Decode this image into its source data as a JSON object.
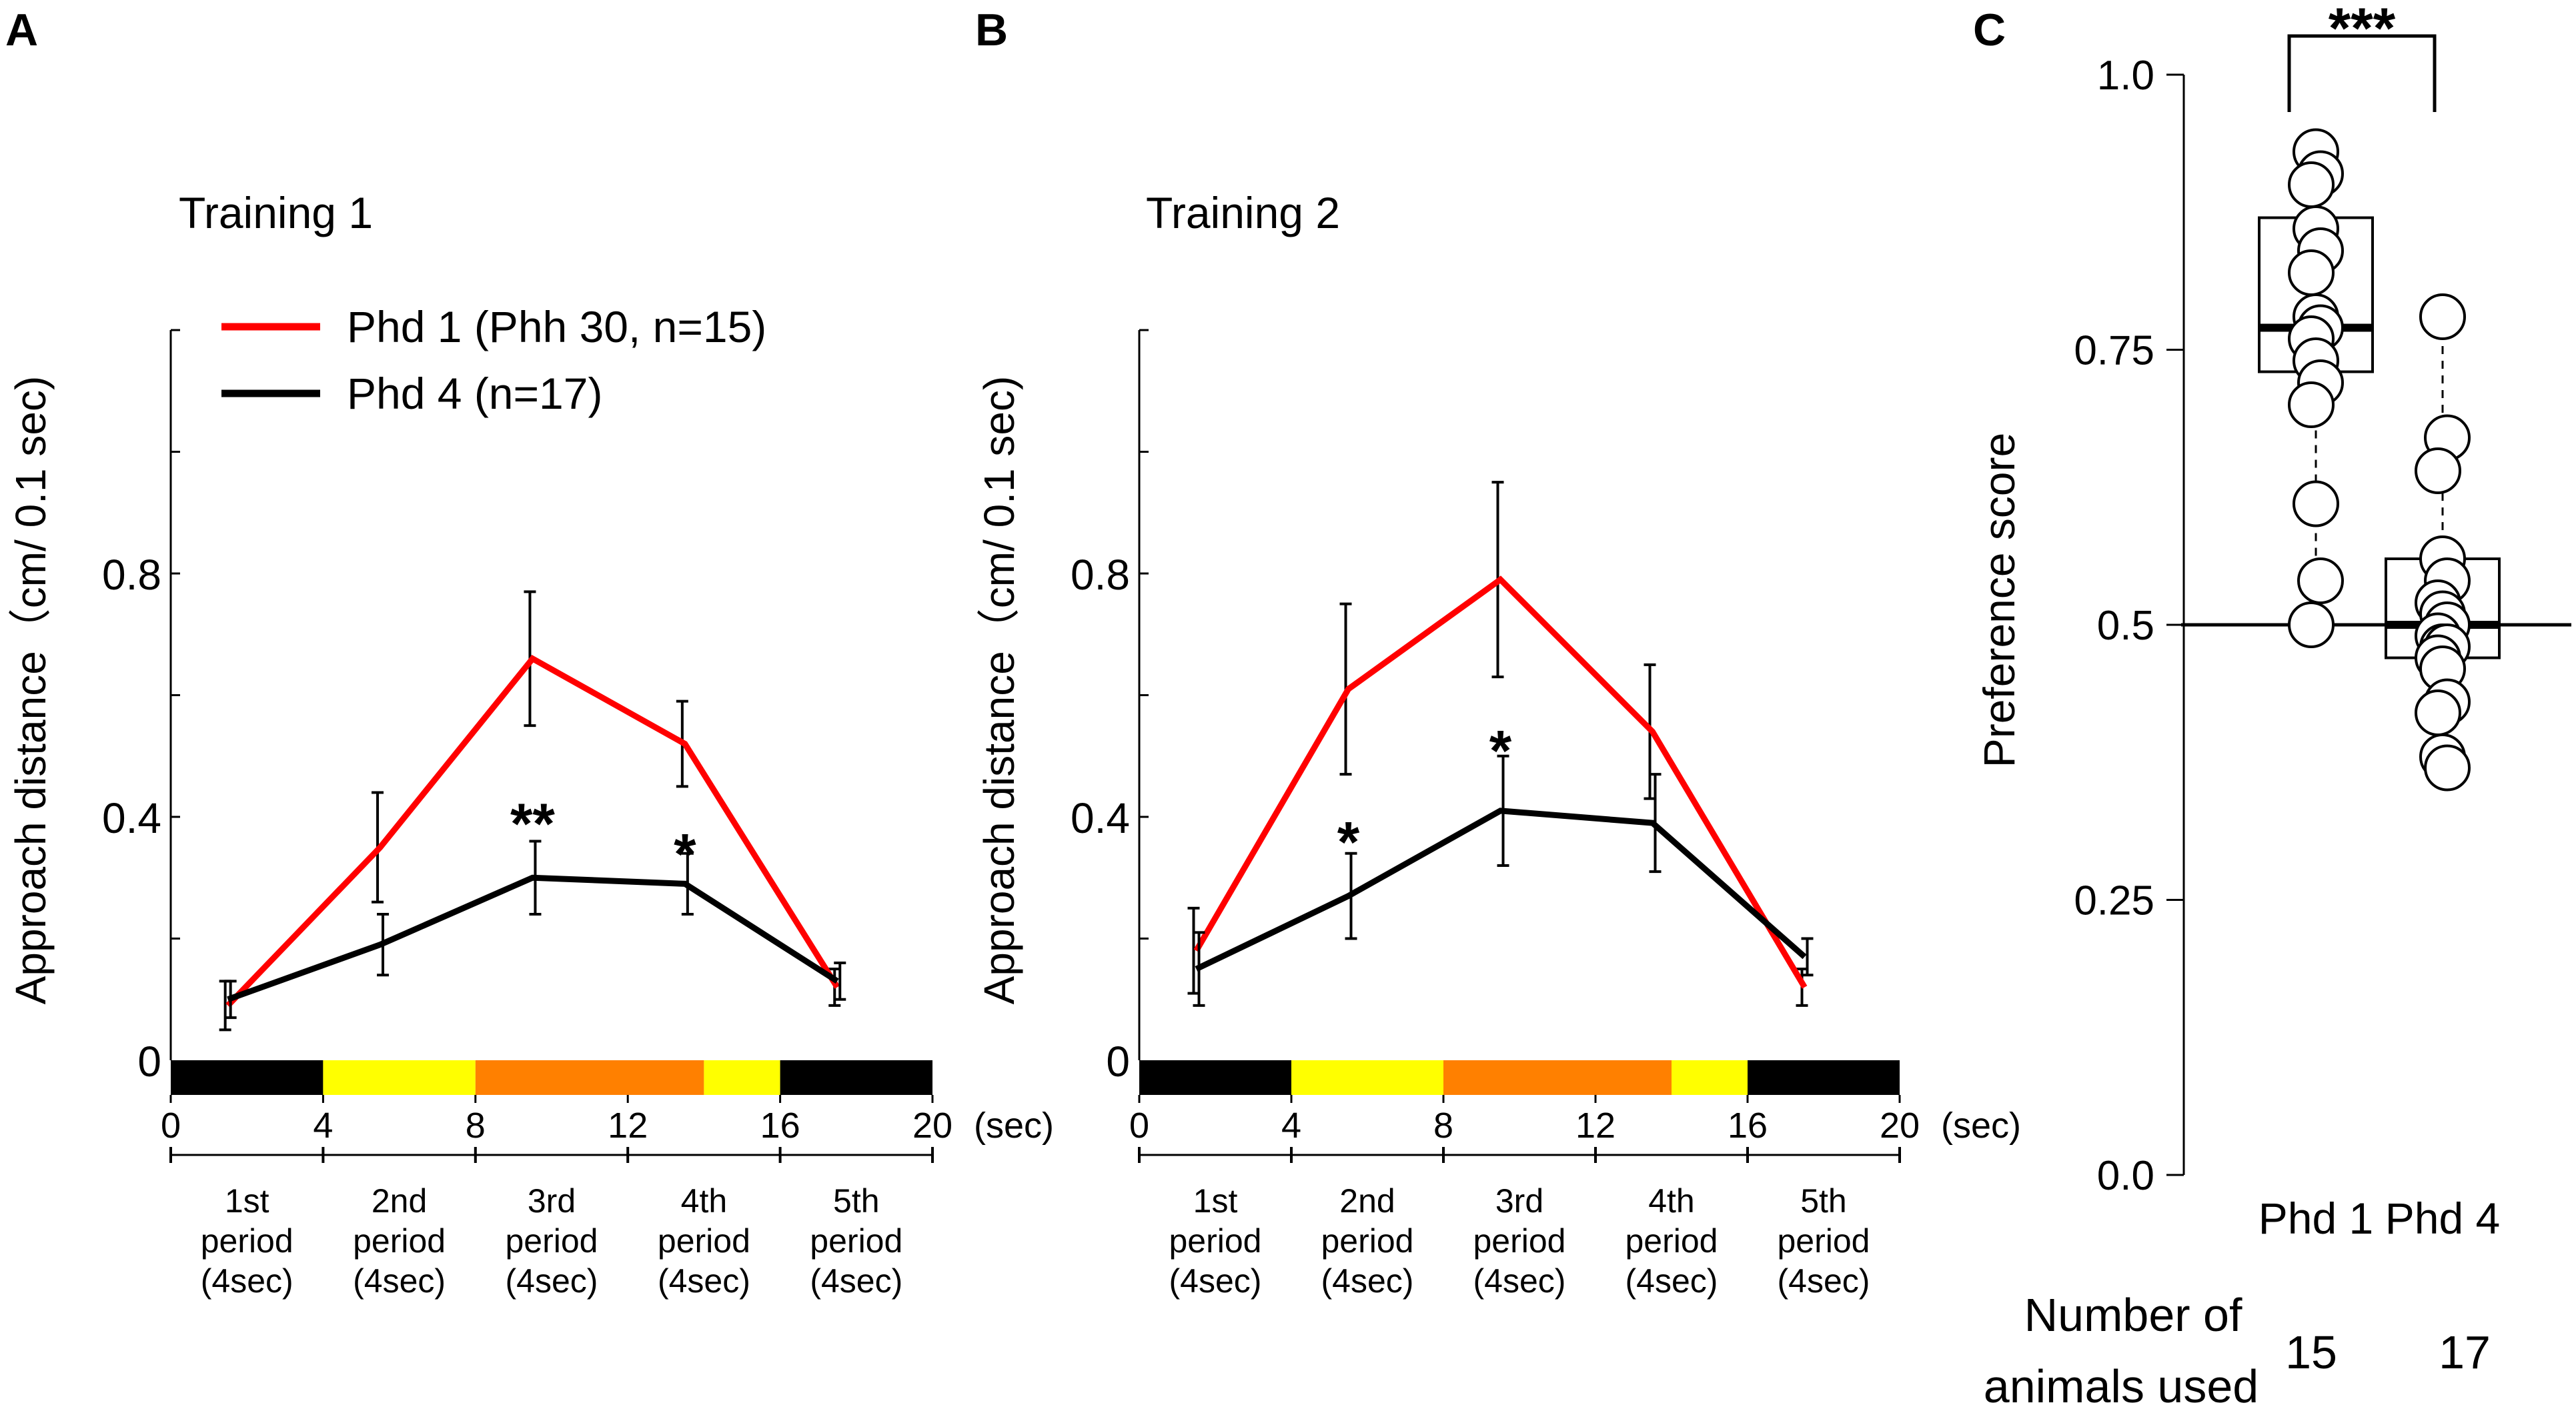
{
  "panels": {
    "a": {
      "letter": "A"
    },
    "b": {
      "letter": "B"
    },
    "c": {
      "letter": "C"
    }
  },
  "legend": {
    "phd1": "Phd 1 (Phh 30, n=15)",
    "phd4": "Phd 4 (n=17)"
  },
  "colors": {
    "phd1": "#ff0000",
    "phd4": "#000000",
    "black_bar": "#000000",
    "yellow_bar": "#ffff00",
    "orange_bar": "#ff8000"
  },
  "x_unit": "(sec)",
  "period_labels": [
    {
      "l1": "1st",
      "l2": "period",
      "l3": "(4sec)"
    },
    {
      "l1": "2nd",
      "l2": "period",
      "l3": "(4sec)"
    },
    {
      "l1": "3rd",
      "l2": "period",
      "l3": "(4sec)"
    },
    {
      "l1": "4th",
      "l2": "period",
      "l3": "(4sec)"
    },
    {
      "l1": "5th",
      "l2": "period",
      "l3": "(4sec)"
    }
  ],
  "stimulus_bar": [
    {
      "from": 0,
      "to": 4,
      "color": "black"
    },
    {
      "from": 4,
      "to": 8,
      "color": "yellow"
    },
    {
      "from": 8,
      "to": 14,
      "color": "orange"
    },
    {
      "from": 14,
      "to": 16,
      "color": "yellow"
    },
    {
      "from": 16,
      "to": 20,
      "color": "black"
    }
  ],
  "chart_data": [
    {
      "type": "line",
      "panel": "A",
      "title": "Training 1",
      "xlabel": "(sec)",
      "ylabel": "Approach distance（cm/ 0.1 sec)",
      "xlim": [
        0,
        20
      ],
      "ylim": [
        0,
        1.2
      ],
      "x_ticks": [
        "0",
        "4",
        "8",
        "12",
        "16",
        "20"
      ],
      "y_ticks": [
        "0",
        "0.4",
        "0.8"
      ],
      "x": [
        1.5,
        5.5,
        9.5,
        13.5,
        17.5
      ],
      "series": [
        {
          "name": "Phd 1 (Phh 30, n=15)",
          "values": [
            0.09,
            0.35,
            0.66,
            0.52,
            0.12
          ],
          "errors": [
            0.04,
            0.09,
            0.11,
            0.07,
            0.03
          ]
        },
        {
          "name": "Phd 4 (n=17)",
          "values": [
            0.1,
            0.19,
            0.3,
            0.29,
            0.13
          ],
          "errors": [
            0.03,
            0.05,
            0.06,
            0.05,
            0.03
          ]
        }
      ],
      "annotations": [
        {
          "x": 9.5,
          "y": 0.4,
          "text": "**"
        },
        {
          "x": 13.5,
          "y": 0.35,
          "text": "*"
        }
      ]
    },
    {
      "type": "line",
      "panel": "B",
      "title": "Training 2",
      "xlabel": "(sec)",
      "ylabel": "Approach distance（cm/ 0.1 sec)",
      "xlim": [
        0,
        20
      ],
      "ylim": [
        0,
        1.2
      ],
      "x_ticks": [
        "0",
        "4",
        "8",
        "12",
        "16",
        "20"
      ],
      "y_ticks": [
        "0",
        "0.4",
        "0.8"
      ],
      "x": [
        1.5,
        5.5,
        9.5,
        13.5,
        17.5
      ],
      "series": [
        {
          "name": "Phd 1 (Phh 30, n=15)",
          "values": [
            0.18,
            0.61,
            0.79,
            0.54,
            0.12
          ],
          "errors": [
            0.07,
            0.14,
            0.16,
            0.11,
            0.03
          ]
        },
        {
          "name": "Phd 4 (n=17)",
          "values": [
            0.15,
            0.27,
            0.41,
            0.39,
            0.17
          ],
          "errors": [
            0.06,
            0.07,
            0.09,
            0.08,
            0.03
          ]
        }
      ],
      "annotations": [
        {
          "x": 5.5,
          "y": 0.37,
          "text": "*"
        },
        {
          "x": 9.5,
          "y": 0.52,
          "text": "*"
        }
      ]
    },
    {
      "type": "box",
      "panel": "C",
      "ylabel": "Preference score",
      "ylim": [
        0,
        1.0
      ],
      "y_ticks": [
        "0.0",
        "0.25",
        "0.5",
        "0.75",
        "1.0"
      ],
      "reference_line": 0.5,
      "categories": [
        "Phd 1",
        "Phd 4"
      ],
      "boxes": [
        {
          "q1": 0.73,
          "median": 0.77,
          "q3": 0.87,
          "whisker_low": 0.5,
          "whisker_high": 0.93
        },
        {
          "q1": 0.47,
          "median": 0.5,
          "q3": 0.56,
          "whisker_low": 0.37,
          "whisker_high": 0.78
        }
      ],
      "points": [
        [
          0.93,
          0.91,
          0.9,
          0.86,
          0.84,
          0.82,
          0.78,
          0.77,
          0.76,
          0.74,
          0.72,
          0.7,
          0.61,
          0.54,
          0.5
        ],
        [
          0.78,
          0.67,
          0.64,
          0.56,
          0.54,
          0.52,
          0.51,
          0.5,
          0.49,
          0.48,
          0.48,
          0.47,
          0.46,
          0.43,
          0.42,
          0.38,
          0.37
        ]
      ],
      "significance": "***",
      "n_label": "Number of animals used",
      "n_label_lines": [
        "Number of",
        "animals used"
      ],
      "n_values": [
        "15",
        "17"
      ]
    }
  ]
}
